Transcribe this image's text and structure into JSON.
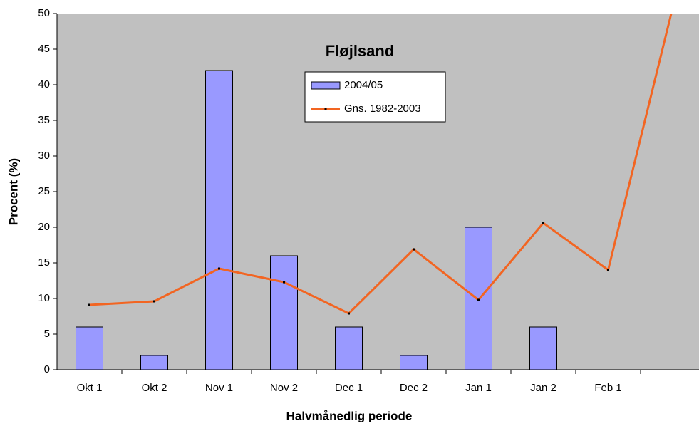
{
  "chart_data": {
    "type": "bar",
    "title": "Fløjlsand",
    "x_label": "Halvmånedlig periode",
    "y_label": "Procent (%)",
    "categories": [
      "Okt 1",
      "Okt 2",
      "Nov 1",
      "Nov 2",
      "Dec 1",
      "Dec 2",
      "Jan 1",
      "Jan 2",
      "Feb 1",
      null
    ],
    "series": [
      {
        "name": "2004/05",
        "type": "bar",
        "color": "#9999ff",
        "values": [
          6,
          2,
          42,
          16,
          6,
          2,
          20,
          6,
          null,
          null
        ]
      },
      {
        "name": "Gns. 1982-2003",
        "type": "line",
        "color": "#f26522",
        "values": [
          9.1,
          9.6,
          14.2,
          12.3,
          7.9,
          16.9,
          9.8,
          20.6,
          14.0,
          51
        ]
      }
    ],
    "ylim": [
      0,
      50
    ],
    "yticks": [
      0,
      5,
      10,
      15,
      20,
      25,
      30,
      35,
      40,
      45,
      50
    ],
    "grid": false,
    "legend": "top"
  }
}
